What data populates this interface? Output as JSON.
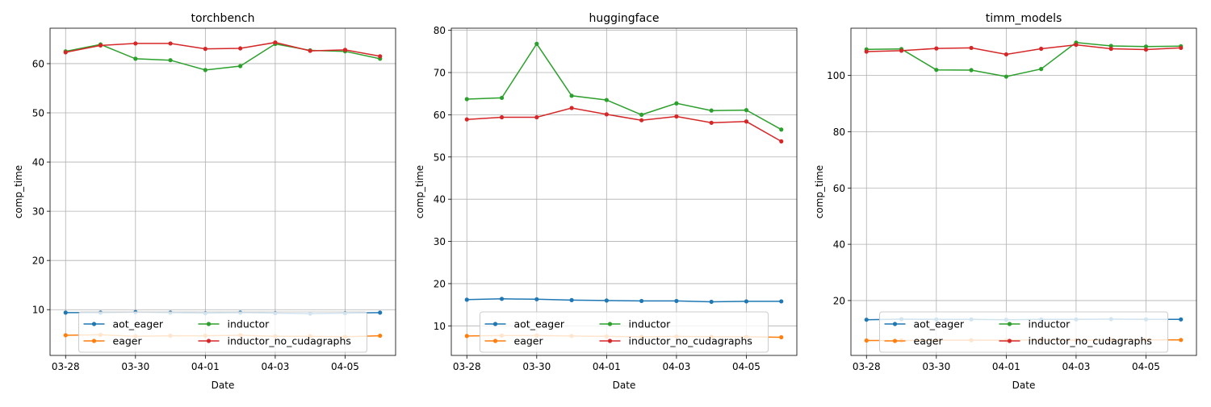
{
  "chart_data": [
    {
      "type": "line",
      "title": "torchbench",
      "xlabel": "Date",
      "ylabel": "comp_time",
      "x": [
        "03-28",
        "03-29",
        "03-30",
        "03-31",
        "04-01",
        "04-02",
        "04-03",
        "04-04",
        "04-05",
        "04-06"
      ],
      "xticks": [
        "03-28",
        "03-30",
        "04-01",
        "04-03",
        "04-05"
      ],
      "ylim": [
        0.7,
        67.2
      ],
      "yticks": [
        10,
        20,
        30,
        40,
        50,
        60
      ],
      "grid": true,
      "legend_position": "lower center",
      "series": [
        {
          "name": "aot_eager",
          "color": "#1f77b4",
          "values": [
            9.4,
            9.4,
            9.5,
            9.4,
            9.3,
            9.4,
            9.3,
            9.2,
            9.3,
            9.4
          ]
        },
        {
          "name": "eager",
          "color": "#ff7f0e",
          "values": [
            4.8,
            4.9,
            4.6,
            4.7,
            4.7,
            4.8,
            4.6,
            4.6,
            4.5,
            4.7
          ]
        },
        {
          "name": "inductor",
          "color": "#2ca02c",
          "values": [
            62.5,
            63.9,
            61.0,
            60.7,
            58.7,
            59.5,
            64.0,
            62.7,
            62.5,
            61.0
          ]
        },
        {
          "name": "inductor_no_cudagraphs",
          "color": "#d62728",
          "values": [
            62.3,
            63.7,
            64.1,
            64.1,
            63.0,
            63.1,
            64.3,
            62.6,
            62.8,
            61.5
          ]
        }
      ]
    },
    {
      "type": "line",
      "title": "huggingface",
      "xlabel": "Date",
      "ylabel": "comp_time",
      "x": [
        "03-28",
        "03-29",
        "03-30",
        "03-31",
        "04-01",
        "04-02",
        "04-03",
        "04-04",
        "04-05",
        "04-06"
      ],
      "xticks": [
        "03-28",
        "03-30",
        "04-01",
        "04-03",
        "04-05"
      ],
      "ylim": [
        3.0,
        80.5
      ],
      "yticks": [
        10,
        20,
        30,
        40,
        50,
        60,
        70,
        80
      ],
      "grid": true,
      "legend_position": "lower center",
      "series": [
        {
          "name": "aot_eager",
          "color": "#1f77b4",
          "values": [
            16.2,
            16.4,
            16.3,
            16.1,
            16.0,
            15.9,
            15.9,
            15.7,
            15.8,
            15.8
          ]
        },
        {
          "name": "eager",
          "color": "#ff7f0e",
          "values": [
            7.6,
            7.7,
            7.7,
            7.6,
            7.5,
            7.4,
            7.5,
            7.4,
            7.4,
            7.3
          ]
        },
        {
          "name": "inductor",
          "color": "#2ca02c",
          "values": [
            63.7,
            64.0,
            76.8,
            64.5,
            63.5,
            60.0,
            62.7,
            61.0,
            61.1,
            56.5
          ]
        },
        {
          "name": "inductor_no_cudagraphs",
          "color": "#d62728",
          "values": [
            58.9,
            59.4,
            59.4,
            61.6,
            60.1,
            58.7,
            59.6,
            58.1,
            58.4,
            53.7
          ]
        }
      ]
    },
    {
      "type": "line",
      "title": "timm_models",
      "xlabel": "Date",
      "ylabel": "comp_time",
      "x": [
        "03-28",
        "03-29",
        "03-30",
        "03-31",
        "04-01",
        "04-02",
        "04-03",
        "04-04",
        "04-05",
        "04-06"
      ],
      "xticks": [
        "03-28",
        "03-30",
        "04-01",
        "04-03",
        "04-05"
      ],
      "ylim": [
        0.5,
        116.8
      ],
      "yticks": [
        20,
        40,
        60,
        80,
        100
      ],
      "grid": true,
      "legend_position": "lower center",
      "series": [
        {
          "name": "aot_eager",
          "color": "#1f77b4",
          "values": [
            13.2,
            13.4,
            13.3,
            13.3,
            13.2,
            13.3,
            13.3,
            13.4,
            13.3,
            13.3
          ]
        },
        {
          "name": "eager",
          "color": "#ff7f0e",
          "values": [
            5.8,
            5.8,
            5.9,
            5.9,
            5.9,
            6.0,
            5.9,
            6.0,
            6.0,
            6.0
          ]
        },
        {
          "name": "inductor",
          "color": "#2ca02c",
          "values": [
            109.3,
            109.4,
            102.0,
            101.9,
            99.6,
            102.3,
            111.7,
            110.5,
            110.3,
            110.4
          ]
        },
        {
          "name": "inductor_no_cudagraphs",
          "color": "#d62728",
          "values": [
            108.5,
            108.8,
            109.6,
            109.8,
            107.5,
            109.5,
            110.9,
            109.5,
            109.2,
            109.8
          ]
        }
      ]
    }
  ]
}
